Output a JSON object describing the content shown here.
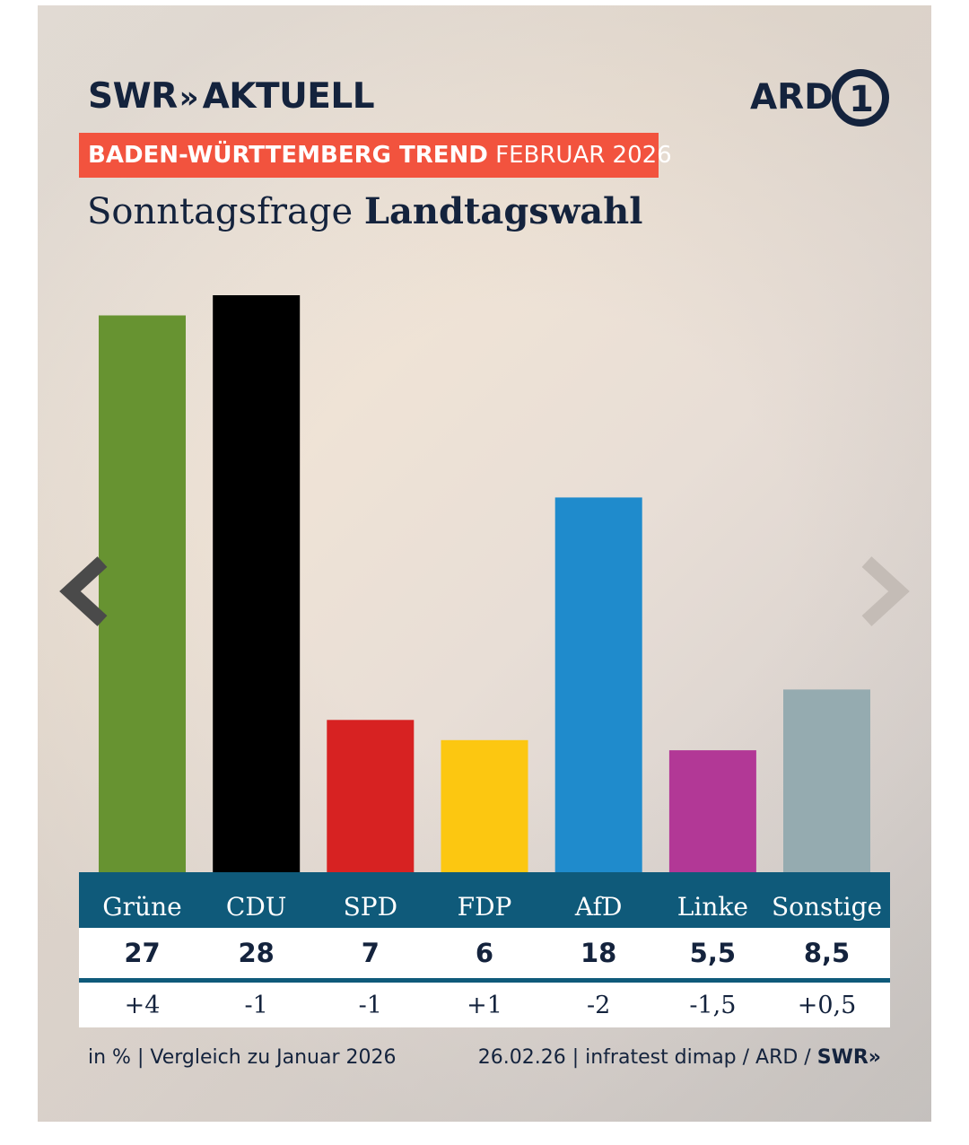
{
  "header": {
    "brand_logo": "SWR",
    "brand_chevrons": "»",
    "brand_suffix": "AKTUELL",
    "partner_logo": "ARD",
    "partner_logo_digit": "1",
    "banner_bold": "BADEN-WÜRTTEMBERG TREND",
    "banner_regular": "FEBRUAR 2026",
    "subtitle_regular": "Sonntagsfrage",
    "subtitle_bold": "Landtagswahl"
  },
  "colors": {
    "banner": "#f2533e",
    "navy": "#14233d",
    "table_header": "#0f5a7a"
  },
  "chart_data": {
    "type": "bar",
    "title": "Sonntagsfrage Landtagswahl",
    "categories": [
      "Grüne",
      "CDU",
      "SPD",
      "FDP",
      "AfD",
      "Linke",
      "Sonstige"
    ],
    "values": [
      27,
      28,
      7,
      6,
      18,
      5.5,
      8.5
    ],
    "value_labels": [
      "27",
      "28",
      "7",
      "6",
      "18",
      "5,5",
      "8,5"
    ],
    "changes": [
      "+4",
      "-1",
      "-1",
      "+1",
      "-2",
      "-1,5",
      "+0,5"
    ],
    "colors": [
      "#679331",
      "#000000",
      "#d72222",
      "#fcc711",
      "#1f8bcc",
      "#b23896",
      "#95abb0"
    ],
    "unit": "%",
    "ylim": [
      0,
      28
    ],
    "xlabel": "",
    "ylabel": ""
  },
  "navigation": {
    "prev_icon": "chevron-left-icon",
    "next_icon": "chevron-right-icon"
  },
  "footer": {
    "left": "in % | Vergleich zu Januar 2026",
    "right_text": "26.02.26 | infratest dimap / ARD / ",
    "right_logo": "SWR",
    "right_logo_chevrons": "»"
  }
}
